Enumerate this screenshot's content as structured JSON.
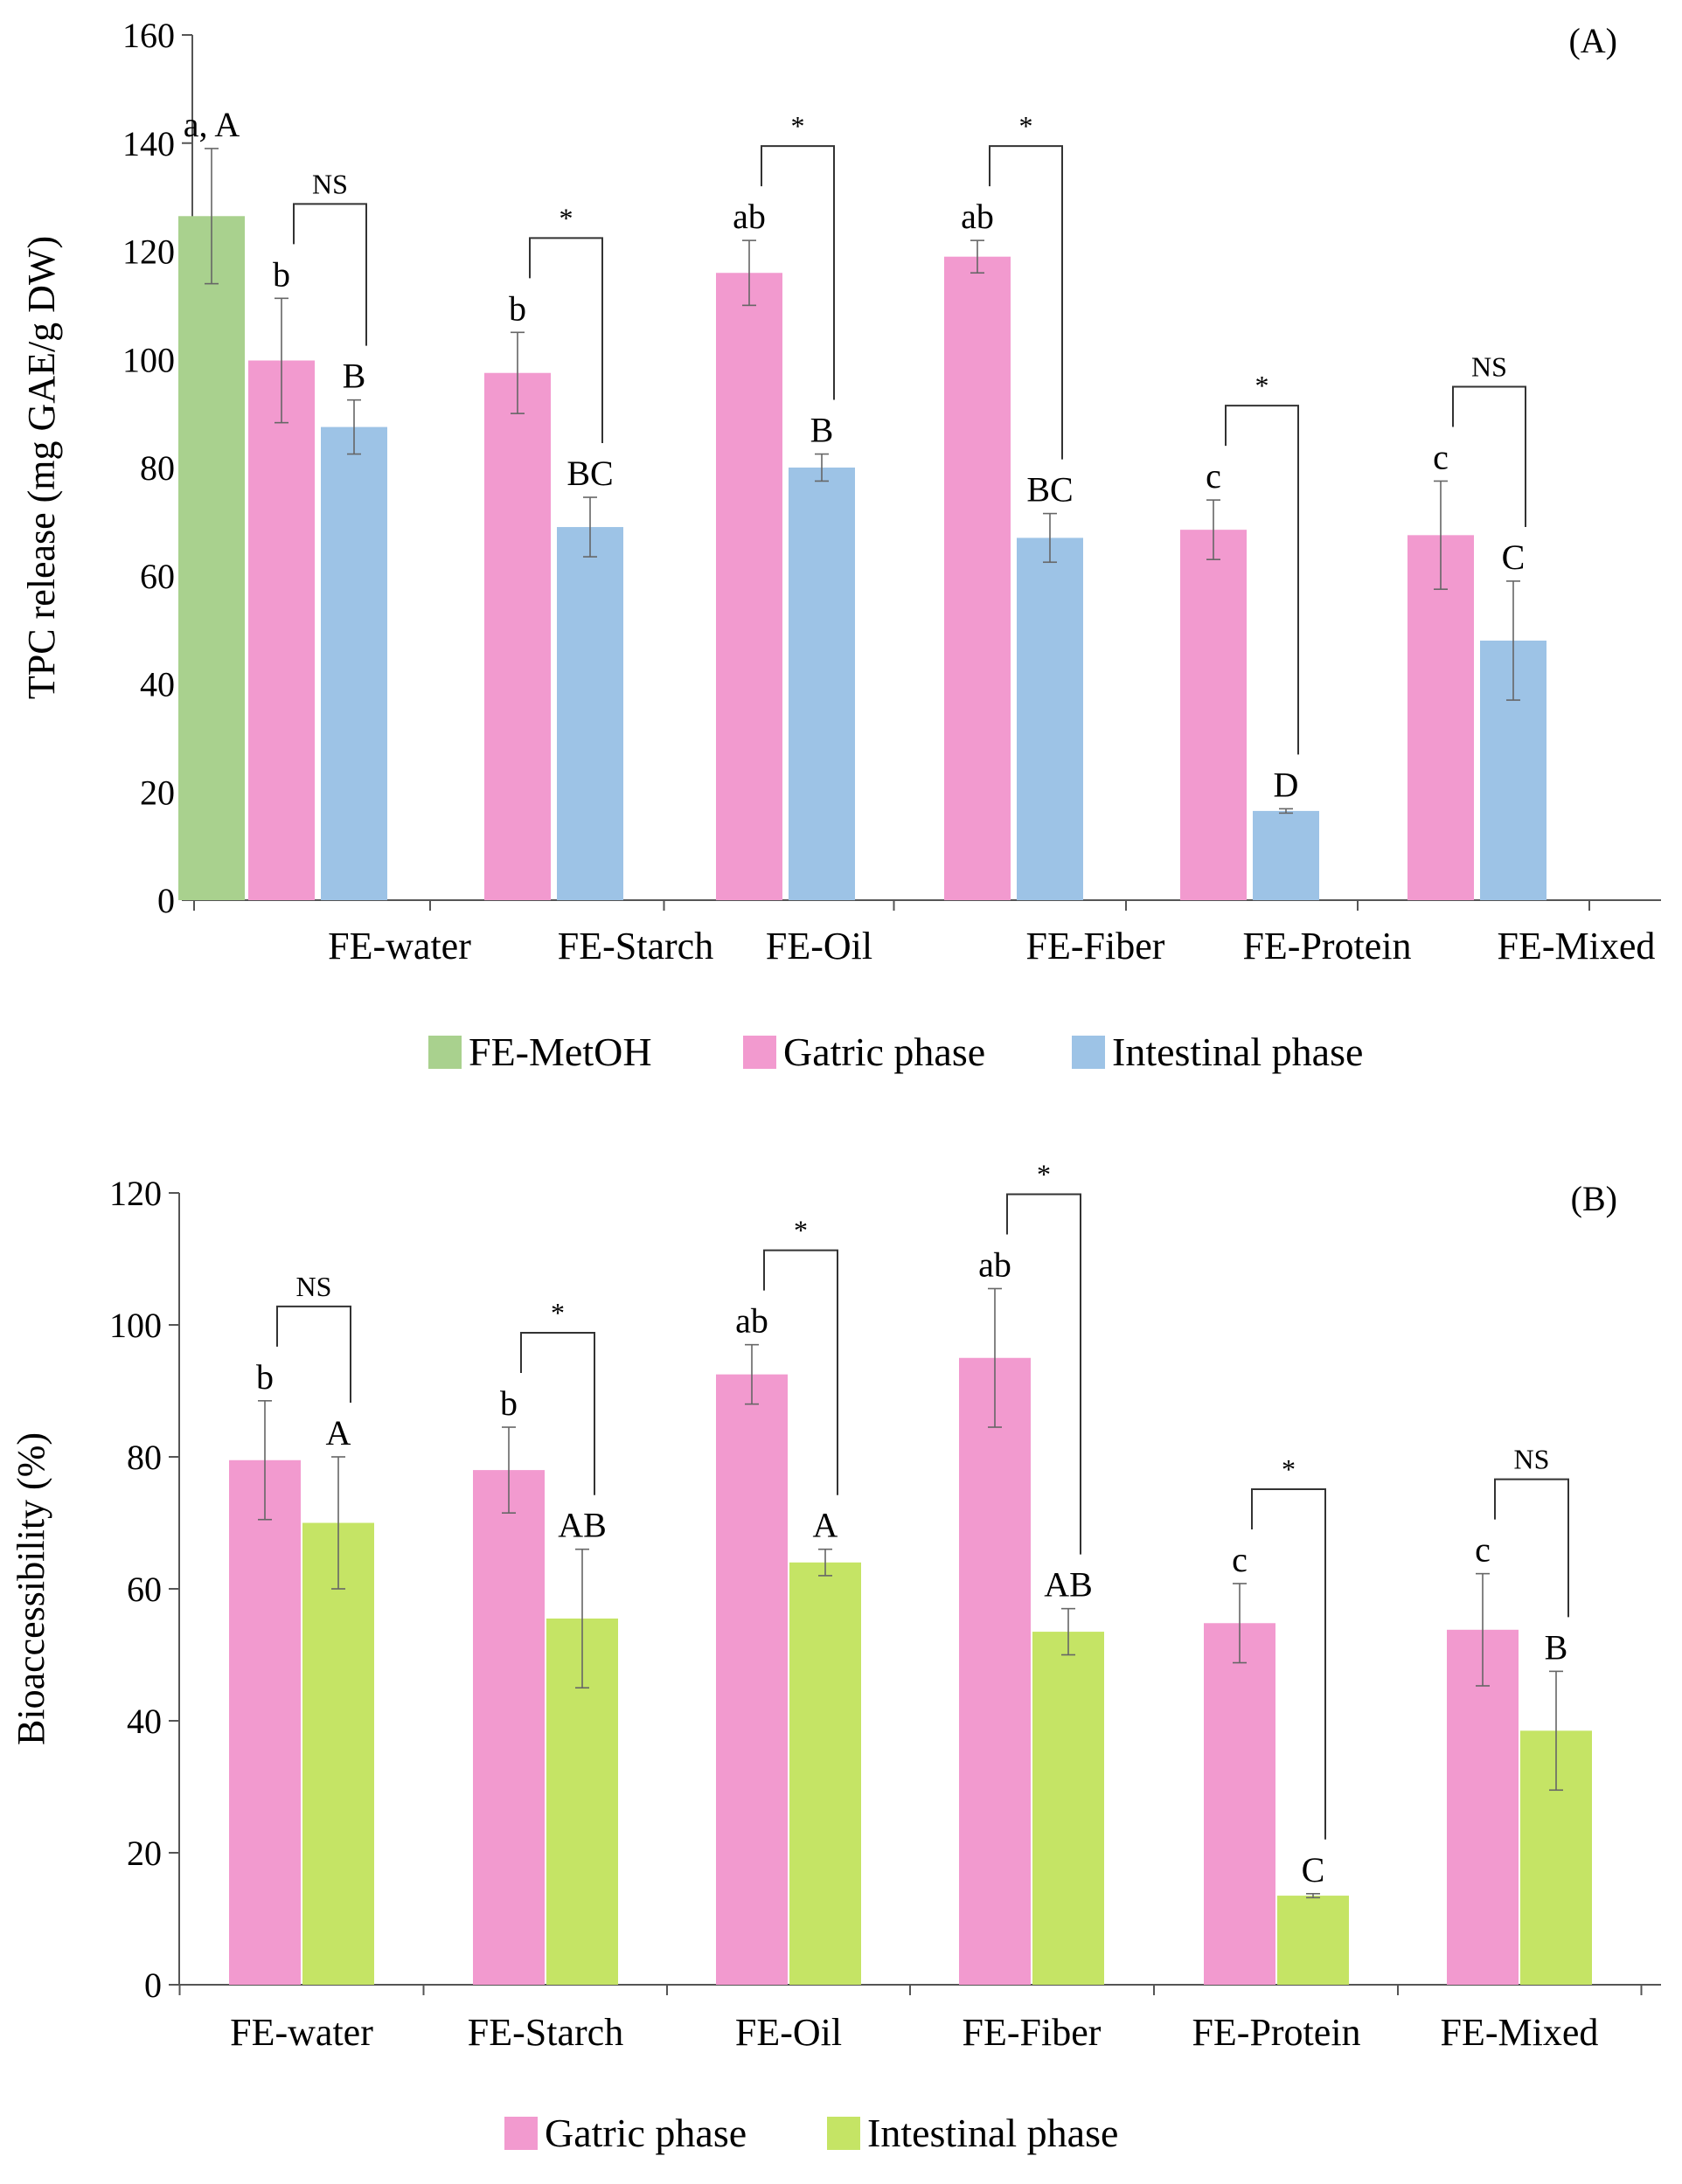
{
  "chart_data": [
    {
      "type": "bar",
      "panel_label": "(A)",
      "ylabel": "TPC release (mg GAE/g DW)",
      "ylim": [
        0,
        160
      ],
      "yticks": [
        0,
        20,
        40,
        60,
        80,
        100,
        120,
        140,
        160
      ],
      "categories": [
        "FE-water",
        "FE-Starch",
        "FE-Oil",
        "FE-Fiber",
        "FE-Protein",
        "FE-Mixed"
      ],
      "series": [
        {
          "name": "FE-MetOH",
          "color": "#A9D18E",
          "values": [
            126.5,
            null,
            null,
            null,
            null,
            null
          ],
          "errors": [
            12.5,
            null,
            null,
            null,
            null,
            null
          ],
          "labels": [
            "a, A",
            null,
            null,
            null,
            null,
            null
          ]
        },
        {
          "name": "Gatric phase",
          "color": "#F29ACF",
          "values": [
            99.8,
            97.5,
            116,
            119,
            68.5,
            67.5
          ],
          "errors": [
            11.5,
            7.5,
            6,
            3,
            5.5,
            10
          ],
          "labels": [
            "b",
            "b",
            "ab",
            "ab",
            "c",
            "c"
          ]
        },
        {
          "name": "Intestinal phase",
          "color": "#9DC3E6",
          "values": [
            87.5,
            69,
            80,
            67,
            16.5,
            48
          ],
          "errors": [
            5,
            5.5,
            2.5,
            4.5,
            0.4,
            11
          ],
          "labels": [
            "B",
            "BC",
            "B",
            "BC",
            "D",
            "C"
          ]
        }
      ],
      "significance": [
        "NS",
        "*",
        "*",
        "*",
        "*",
        "NS"
      ],
      "legend": [
        "FE-MetOH",
        "Gatric phase",
        "Intestinal phase"
      ]
    },
    {
      "type": "bar",
      "panel_label": "(B)",
      "ylabel": "Bioaccessibility (%)",
      "ylim": [
        0,
        120
      ],
      "yticks": [
        0,
        20,
        40,
        60,
        80,
        100,
        120
      ],
      "categories": [
        "FE-water",
        "FE-Starch",
        "FE-Oil",
        "FE-Fiber",
        "FE-Protein",
        "FE-Mixed"
      ],
      "series": [
        {
          "name": "Gatric phase",
          "color": "#F29ACF",
          "values": [
            79.5,
            78,
            92.5,
            95,
            54.8,
            53.8
          ],
          "errors": [
            9,
            6.5,
            4.5,
            10.5,
            6,
            8.5
          ],
          "labels": [
            "b",
            "b",
            "ab",
            "ab",
            "c",
            "c"
          ]
        },
        {
          "name": "Intestinal phase",
          "color": "#C5E465",
          "values": [
            70,
            55.5,
            64,
            53.5,
            13.5,
            38.5
          ],
          "errors": [
            10,
            10.5,
            2,
            3.5,
            0.3,
            9
          ],
          "labels": [
            "A",
            "AB",
            "A",
            "AB",
            "C",
            "B"
          ]
        }
      ],
      "significance": [
        "NS",
        "*",
        "*",
        "*",
        "*",
        "NS"
      ],
      "legend": [
        "Gatric phase",
        "Intestinal phase"
      ]
    }
  ]
}
